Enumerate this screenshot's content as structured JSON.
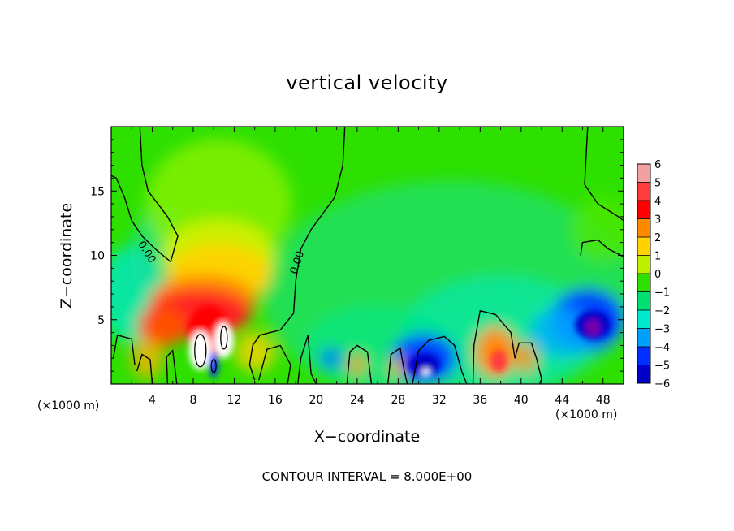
{
  "chart_data": {
    "type": "heatmap",
    "title": "vertical velocity",
    "xlabel": "X−coordinate",
    "ylabel": "Z−coordinate",
    "x_unit_left": "(×1000 m)",
    "x_unit_right": "(×1000 m)",
    "footer": "CONTOUR INTERVAL = 8.000E+00",
    "xlim": [
      0,
      50
    ],
    "ylim": [
      0,
      20
    ],
    "x_ticks": [
      4,
      8,
      12,
      16,
      20,
      24,
      28,
      32,
      36,
      40,
      44,
      48
    ],
    "x_tick_labels": [
      "4",
      "8",
      "12",
      "16",
      "20",
      "24",
      "28",
      "32",
      "36",
      "40",
      "44",
      "48"
    ],
    "y_ticks": [
      5,
      10,
      15
    ],
    "y_tick_labels": [
      "5",
      "10",
      "15"
    ],
    "contour_labels": [
      "0.00",
      "0.00"
    ],
    "colorbar": {
      "levels": [
        6,
        5,
        4,
        3,
        2,
        1,
        0,
        -1,
        -2,
        -3,
        -4,
        -5,
        -6
      ],
      "labels": [
        "6",
        "5",
        "4",
        "3",
        "2",
        "1",
        "0",
        "−1",
        "−2",
        "−3",
        "−4",
        "−5",
        "−6"
      ],
      "colors": [
        "#f4a0a0",
        "#ff3c3c",
        "#ff0000",
        "#ff8a00",
        "#ffd200",
        "#bff000",
        "#2ee000",
        "#00e070",
        "#00e8d0",
        "#00a0ff",
        "#0030ff",
        "#0000c8",
        "#7800a8"
      ]
    },
    "features": [
      {
        "kind": "updraft",
        "x": 9.5,
        "z": 5.5,
        "max": 6,
        "color": "#ff0000"
      },
      {
        "kind": "updraft",
        "x": 11,
        "z": 3.2,
        "max": 6,
        "color": "#ffffff"
      },
      {
        "kind": "downdraft",
        "x": 30.5,
        "z": 1.5,
        "min": -6,
        "color": "#0000c8"
      },
      {
        "kind": "downdraft",
        "x": 47,
        "z": 4.5,
        "min": -6,
        "color": "#7800a8"
      },
      {
        "kind": "updraft",
        "x": 37.5,
        "z": 2,
        "max": 4,
        "color": "#ff3c3c"
      }
    ]
  }
}
